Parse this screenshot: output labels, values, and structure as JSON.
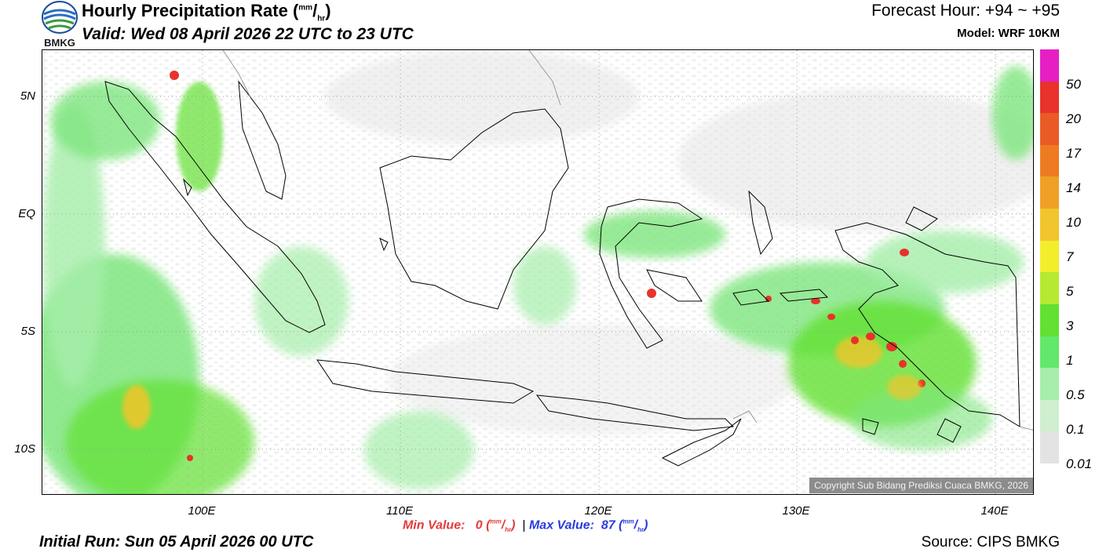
{
  "header": {
    "logo_text": "BMKG",
    "title_main": "Hourly Precipitation Rate (",
    "title_unit_num": "mm",
    "title_unit_den": "hr",
    "title_close": ")",
    "valid": "Valid: Wed 08 April 2026 22 UTC to 23 UTC",
    "forecast_hour": "Forecast Hour: +94 ~ +95",
    "model": "Model: WRF 10KM"
  },
  "map": {
    "lat_labels": [
      "5N",
      "EQ",
      "5S",
      "10S"
    ],
    "lon_labels": [
      "100E",
      "110E",
      "120E",
      "130E",
      "140E"
    ],
    "copyright": "Copyright Sub Bidang Prediksi Cuaca BMKG, 2026"
  },
  "colorbar": {
    "labels": [
      "50",
      "20",
      "17",
      "14",
      "10",
      "7",
      "5",
      "3",
      "1",
      "0.5",
      "0.1",
      "0.01"
    ],
    "colors": [
      "#e51fc4",
      "#e8322b",
      "#ea5a25",
      "#ee7b22",
      "#efa025",
      "#f2c52c",
      "#f3ee2b",
      "#b6ea30",
      "#62e132",
      "#62e86a",
      "#a6eeaa",
      "#cfefcf",
      "#e3e3e3"
    ]
  },
  "footer": {
    "min_label": "Min Value:",
    "min_value": "0",
    "max_label": "Max Value:",
    "max_value": "87",
    "unit_num": "mm",
    "unit_den": "hr",
    "separator": "|",
    "initial_run": "Initial Run: Sun 05 April 2026 00 UTC",
    "source": "Source: CIPS BMKG"
  }
}
